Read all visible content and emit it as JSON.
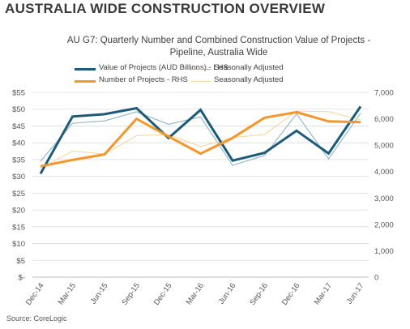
{
  "page": {
    "heading": "AUSTRALIA WIDE CONSTRUCTION OVERVIEW",
    "source": "Source: CoreLogic"
  },
  "chart_data": {
    "type": "line",
    "title": "AU G7: Quarterly Number and Combined Construction Value of Projects -",
    "subtitle": "Pipeline, Australia Wide",
    "categories": [
      "Dec-14",
      "Mar-15",
      "Jun-15",
      "Sep-15",
      "Dec-15",
      "Mar-16",
      "Jun-16",
      "Sep-16",
      "Dec-16",
      "Mar-17",
      "Jun-17"
    ],
    "y_left": {
      "min": 0,
      "max": 55,
      "step": 5,
      "tick_labels": [
        "$-",
        "$5",
        "$10",
        "$15",
        "$20",
        "$25",
        "$30",
        "$35",
        "$40",
        "$45",
        "$50",
        "$55"
      ]
    },
    "y_right": {
      "min": 0,
      "max": 7000,
      "step": 1000,
      "tick_labels": [
        "0",
        "1,000",
        "2,000",
        "3,000",
        "4,000",
        "5,000",
        "6,000",
        "7,000"
      ]
    },
    "grid": true,
    "legend_position": "top",
    "series": [
      {
        "name": "Value of Projects (AUD Billions) - LHS",
        "axis": "left",
        "color": "#1c5a78",
        "values": [
          30.8,
          47.8,
          48.5,
          50.3,
          41.4,
          49.8,
          34.7,
          37.0,
          43.6,
          36.8,
          50.8
        ]
      },
      {
        "name": "Seasonally Adjusted",
        "axis": "left",
        "color": "#8fb4c7",
        "values": [
          34.5,
          45.8,
          46.5,
          49.2,
          45.5,
          47.7,
          33.3,
          36.2,
          48.6,
          35.2,
          48.8
        ]
      },
      {
        "name": "Number of Projects - RHS",
        "axis": "right",
        "color": "#f4962e",
        "values": [
          4200,
          4440,
          4650,
          6000,
          5330,
          4680,
          5270,
          6040,
          6250,
          5900,
          5870
        ]
      },
      {
        "name": "Seasonally Adjusted",
        "axis": "right",
        "color": "#f8d7a4",
        "values": [
          4130,
          4770,
          4660,
          5360,
          5400,
          4950,
          5290,
          5400,
          6290,
          6270,
          5960
        ]
      }
    ]
  }
}
